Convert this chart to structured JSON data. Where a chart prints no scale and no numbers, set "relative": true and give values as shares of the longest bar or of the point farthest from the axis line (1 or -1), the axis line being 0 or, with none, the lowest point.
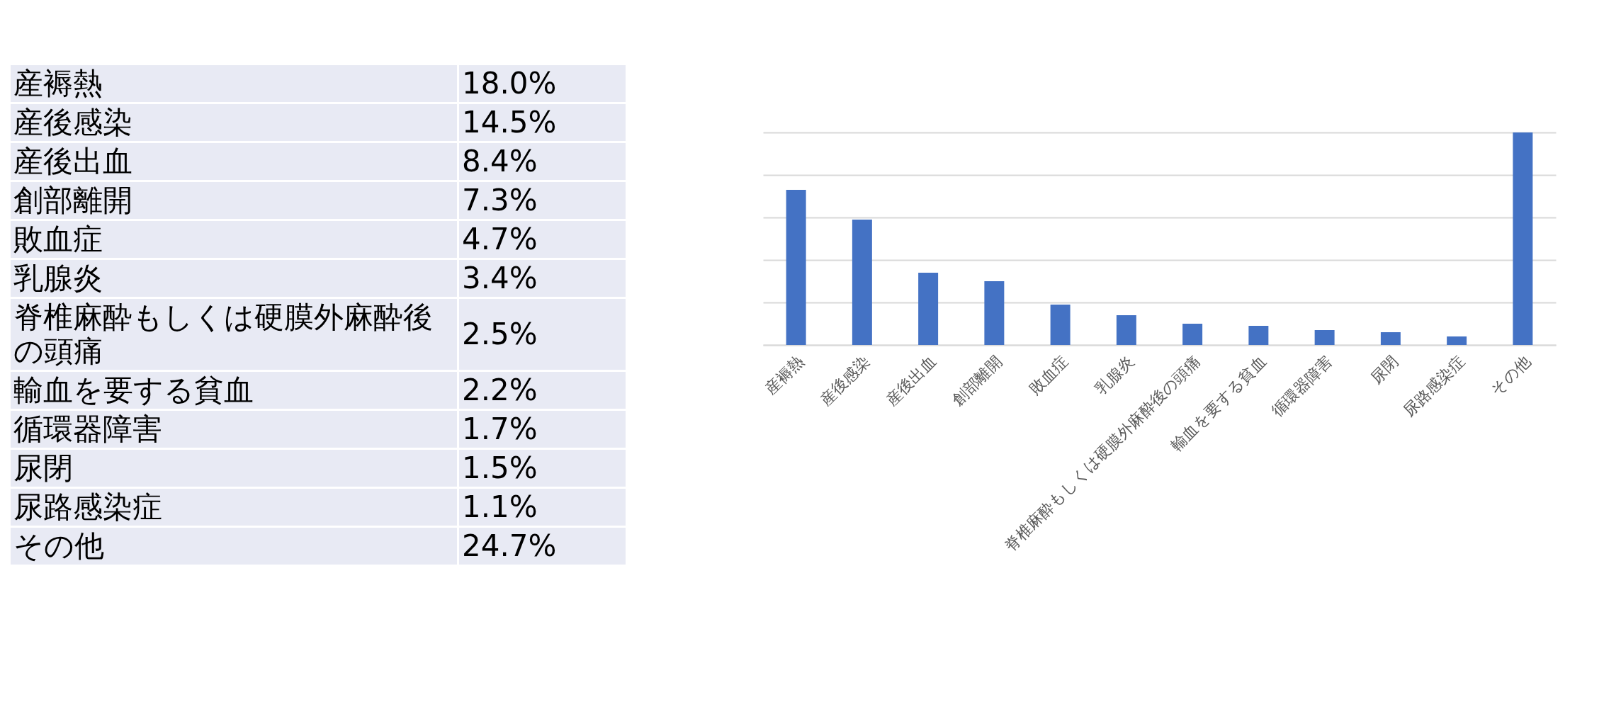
{
  "chart_data": [
    {
      "type": "other",
      "categories": [
        "産褥熱",
        "産後感染",
        "産後出血",
        "創部離開",
        "敗血症",
        "乳腺炎",
        "脊椎麻酔もしくは硬膜外麻酔後の頭痛",
        "輸血を要する貧血",
        "循環器障害",
        "尿閉",
        "尿路感染症",
        "その他"
      ],
      "value_labels": [
        "18.0%",
        "14.5%",
        "8.4%",
        "7.3%",
        "4.7%",
        "3.4%",
        "2.5%",
        "2.2%",
        "1.7%",
        "1.5%",
        "1.1%",
        "24.7%"
      ]
    },
    {
      "type": "bar",
      "relative": true,
      "categories": [
        "産褥熱",
        "産後感染",
        "産後出血",
        "創部離開",
        "敗血症",
        "乳腺炎",
        "脊椎麻酔もしくは硬膜外麻酔後の頭痛",
        "輸血を要する貧血",
        "循環器障害",
        "尿閉",
        "尿路感染症",
        "その他"
      ],
      "values": [
        0.73,
        0.59,
        0.34,
        0.3,
        0.19,
        0.14,
        0.1,
        0.09,
        0.07,
        0.06,
        0.04,
        1
      ],
      "color": "#4472c4",
      "grid": "y"
    }
  ]
}
